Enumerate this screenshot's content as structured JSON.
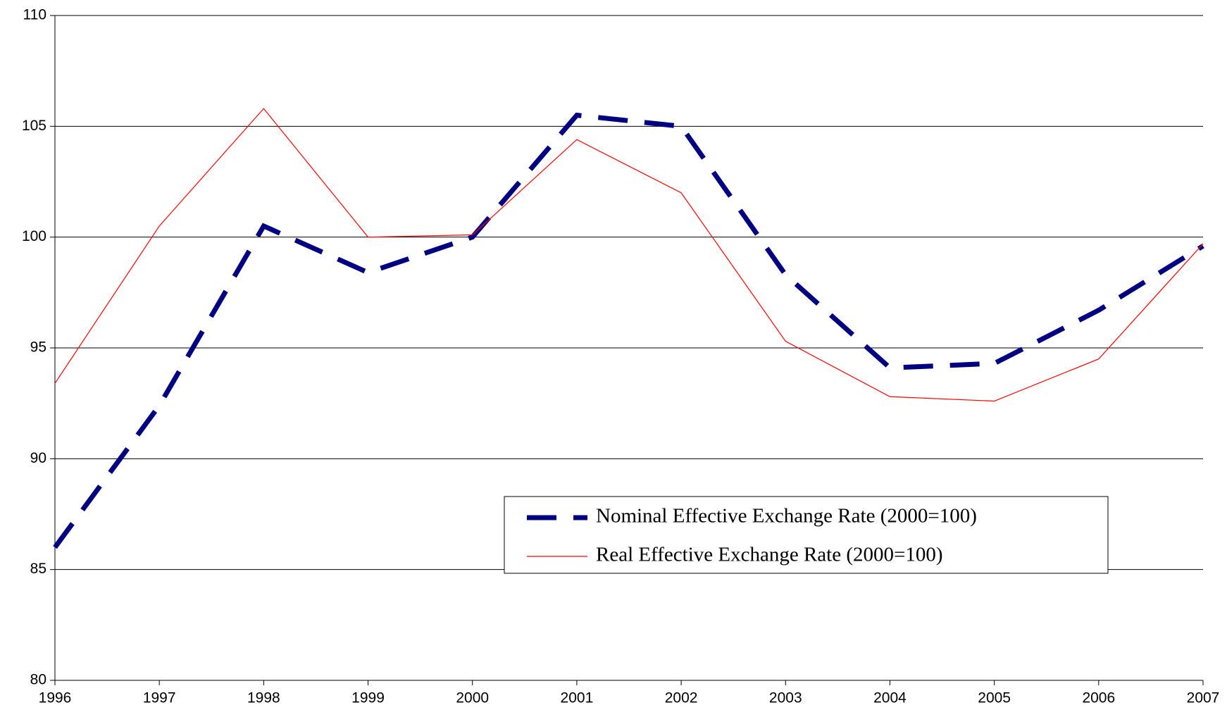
{
  "chart_data": {
    "type": "line",
    "x": [
      1996,
      1997,
      1998,
      1999,
      2000,
      2001,
      2002,
      2003,
      2004,
      2005,
      2006,
      2007
    ],
    "series": [
      {
        "name": "Nominal Effective Exchange Rate (2000=100)",
        "color": "#000080",
        "dashed": true,
        "values": [
          86.0,
          92.4,
          100.5,
          98.4,
          100.0,
          105.5,
          105.0,
          98.3,
          94.1,
          94.3,
          96.7,
          99.6
        ]
      },
      {
        "name": "Real Effective Exchange Rate (2000=100)",
        "color": "#ff0000",
        "dashed": false,
        "values": [
          93.4,
          100.5,
          105.8,
          100.0,
          100.1,
          104.4,
          102.0,
          95.3,
          92.8,
          92.6,
          94.5,
          99.7
        ]
      }
    ],
    "xlim": [
      1996,
      2007
    ],
    "xticks": [
      1996,
      1997,
      1998,
      1999,
      2000,
      2001,
      2002,
      2003,
      2004,
      2005,
      2006,
      2007
    ],
    "ylim": [
      80,
      110
    ],
    "yticks": [
      80,
      85,
      90,
      95,
      100,
      105,
      110
    ],
    "grid": true,
    "legend": "lower right"
  }
}
